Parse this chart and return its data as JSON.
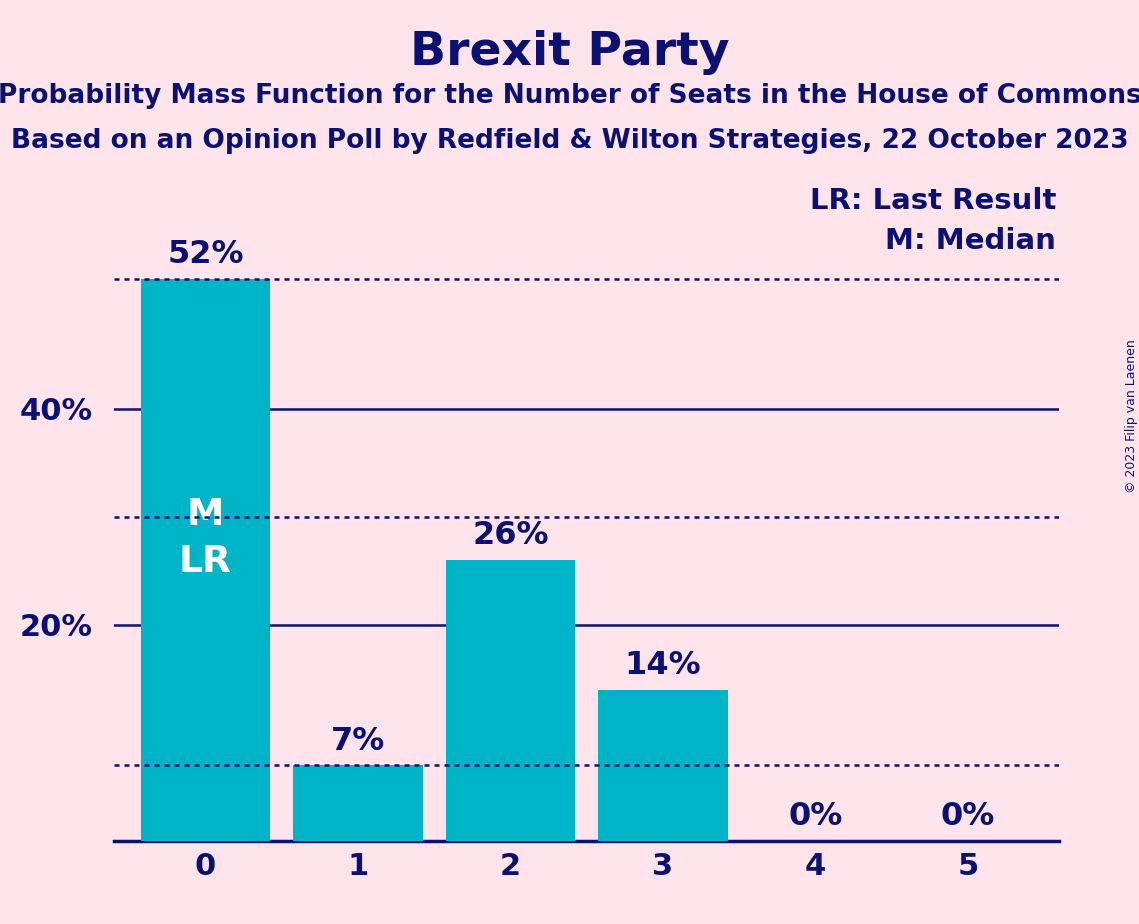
{
  "title": "Brexit Party",
  "subtitle1": "Probability Mass Function for the Number of Seats in the House of Commons",
  "subtitle2": "Based on an Opinion Poll by Redfield & Wilton Strategies, 22 October 2023",
  "copyright": "© 2023 Filip van Laenen",
  "categories": [
    0,
    1,
    2,
    3,
    4,
    5
  ],
  "values": [
    52,
    7,
    26,
    14,
    0,
    0
  ],
  "bar_color": "#00B4C8",
  "background_color": "#FFE4EC",
  "title_color": "#0A1172",
  "bar_label_color_outside": "#0A1172",
  "bar_label_color_inside": "#FFFFFF",
  "axis_color": "#0A1172",
  "grid_solid_color": "#0A1172",
  "grid_dotted_color": "#0A1172",
  "ylabel_ticks": [
    20,
    40
  ],
  "dotted_lines": [
    7,
    30,
    52
  ],
  "solid_lines": [
    20,
    40
  ],
  "legend_lr": "LR: Last Result",
  "legend_m": "M: Median",
  "title_fontsize": 34,
  "subtitle_fontsize": 19,
  "tick_fontsize": 22,
  "bar_label_fontsize": 23,
  "inside_label_fontsize": 27,
  "legend_fontsize": 21,
  "copyright_fontsize": 9,
  "ylim_max": 62,
  "bar_width": 0.85
}
